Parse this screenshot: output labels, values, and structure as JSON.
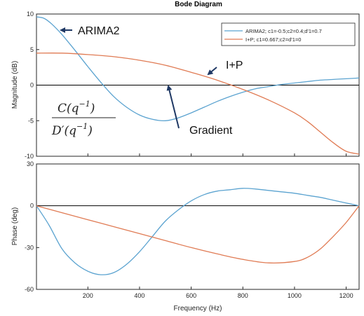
{
  "chart_data": [
    {
      "type": "line",
      "title": "Bode Diagram",
      "ylabel": "Magnitude (dB)",
      "xlim": [
        1,
        1250
      ],
      "ylim": [
        -10,
        10
      ],
      "yticks": [
        -10,
        -5,
        0,
        5,
        10
      ],
      "grid": false,
      "legend_position": "top-right",
      "series": [
        {
          "name": "ARIMA2; c1=-0.5;c2=0.4;d'1=0.7",
          "color": "#5BA3D0",
          "x": [
            1,
            30,
            60,
            100,
            150,
            200,
            250,
            300,
            350,
            400,
            450,
            500,
            550,
            600,
            650,
            700,
            750,
            800,
            850,
            900,
            950,
            1000,
            1050,
            1100,
            1150,
            1200,
            1250
          ],
          "y": [
            9.6,
            9.4,
            8.6,
            7.1,
            4.9,
            2.6,
            0.4,
            -1.6,
            -3.1,
            -4.2,
            -4.8,
            -5.0,
            -4.6,
            -3.9,
            -3.1,
            -2.3,
            -1.6,
            -1.0,
            -0.5,
            -0.2,
            0.1,
            0.3,
            0.5,
            0.7,
            0.8,
            0.9,
            1.0
          ]
        },
        {
          "name": "I+P; c1=0.667;c2=d'1=0",
          "color": "#E07B54",
          "x": [
            1,
            100,
            200,
            300,
            400,
            500,
            600,
            700,
            800,
            900,
            1000,
            1050,
            1100,
            1150,
            1200,
            1250
          ],
          "y": [
            4.5,
            4.5,
            4.3,
            4.0,
            3.5,
            2.8,
            1.8,
            0.7,
            -0.6,
            -2.1,
            -3.9,
            -5.1,
            -6.6,
            -8.1,
            -9.3,
            -9.7
          ]
        }
      ],
      "annotations": [
        {
          "text": "ARIMA2",
          "x": 175,
          "y": 8.7
        },
        {
          "text": "I+P",
          "x": 780,
          "y": 2.8
        },
        {
          "text": "Gradient",
          "x": 700,
          "y": -6.3
        },
        {
          "text_parts": [
            "C(q",
            "−1",
            ")",
            "D′(q",
            "−1",
            ")"
          ]
        }
      ]
    },
    {
      "type": "line",
      "xlabel": "Frequency  (Hz)",
      "ylabel": "Phase (deg)",
      "xlim": [
        1,
        1250
      ],
      "ylim": [
        -60,
        30
      ],
      "yticks": [
        -60,
        -30,
        0,
        30
      ],
      "xticks": [
        200,
        400,
        600,
        800,
        1000,
        1200
      ],
      "grid": false,
      "series": [
        {
          "name": "ARIMA2; c1=-0.5;c2=0.4;d'1=0.7",
          "color": "#5BA3D0",
          "x": [
            1,
            50,
            100,
            150,
            200,
            250,
            300,
            350,
            400,
            450,
            500,
            550,
            600,
            650,
            700,
            750,
            800,
            850,
            900,
            950,
            1000,
            1050,
            1100,
            1150,
            1200,
            1250
          ],
          "y": [
            0,
            -14,
            -31,
            -41,
            -47,
            -49.5,
            -48,
            -42,
            -33,
            -22,
            -11,
            -3,
            3.5,
            8,
            10.5,
            11.5,
            12.5,
            12,
            11,
            10,
            9,
            7.5,
            6,
            4,
            2,
            0
          ]
        },
        {
          "name": "I+P; c1=0.667;c2=d'1=0",
          "color": "#E07B54",
          "x": [
            1,
            100,
            200,
            300,
            400,
            500,
            600,
            700,
            800,
            900,
            1000,
            1050,
            1100,
            1150,
            1200,
            1250
          ],
          "y": [
            0,
            -5,
            -10,
            -15,
            -20,
            -25,
            -30,
            -34.5,
            -38.5,
            -41,
            -40,
            -37,
            -31,
            -22,
            -12,
            0
          ]
        }
      ]
    }
  ]
}
